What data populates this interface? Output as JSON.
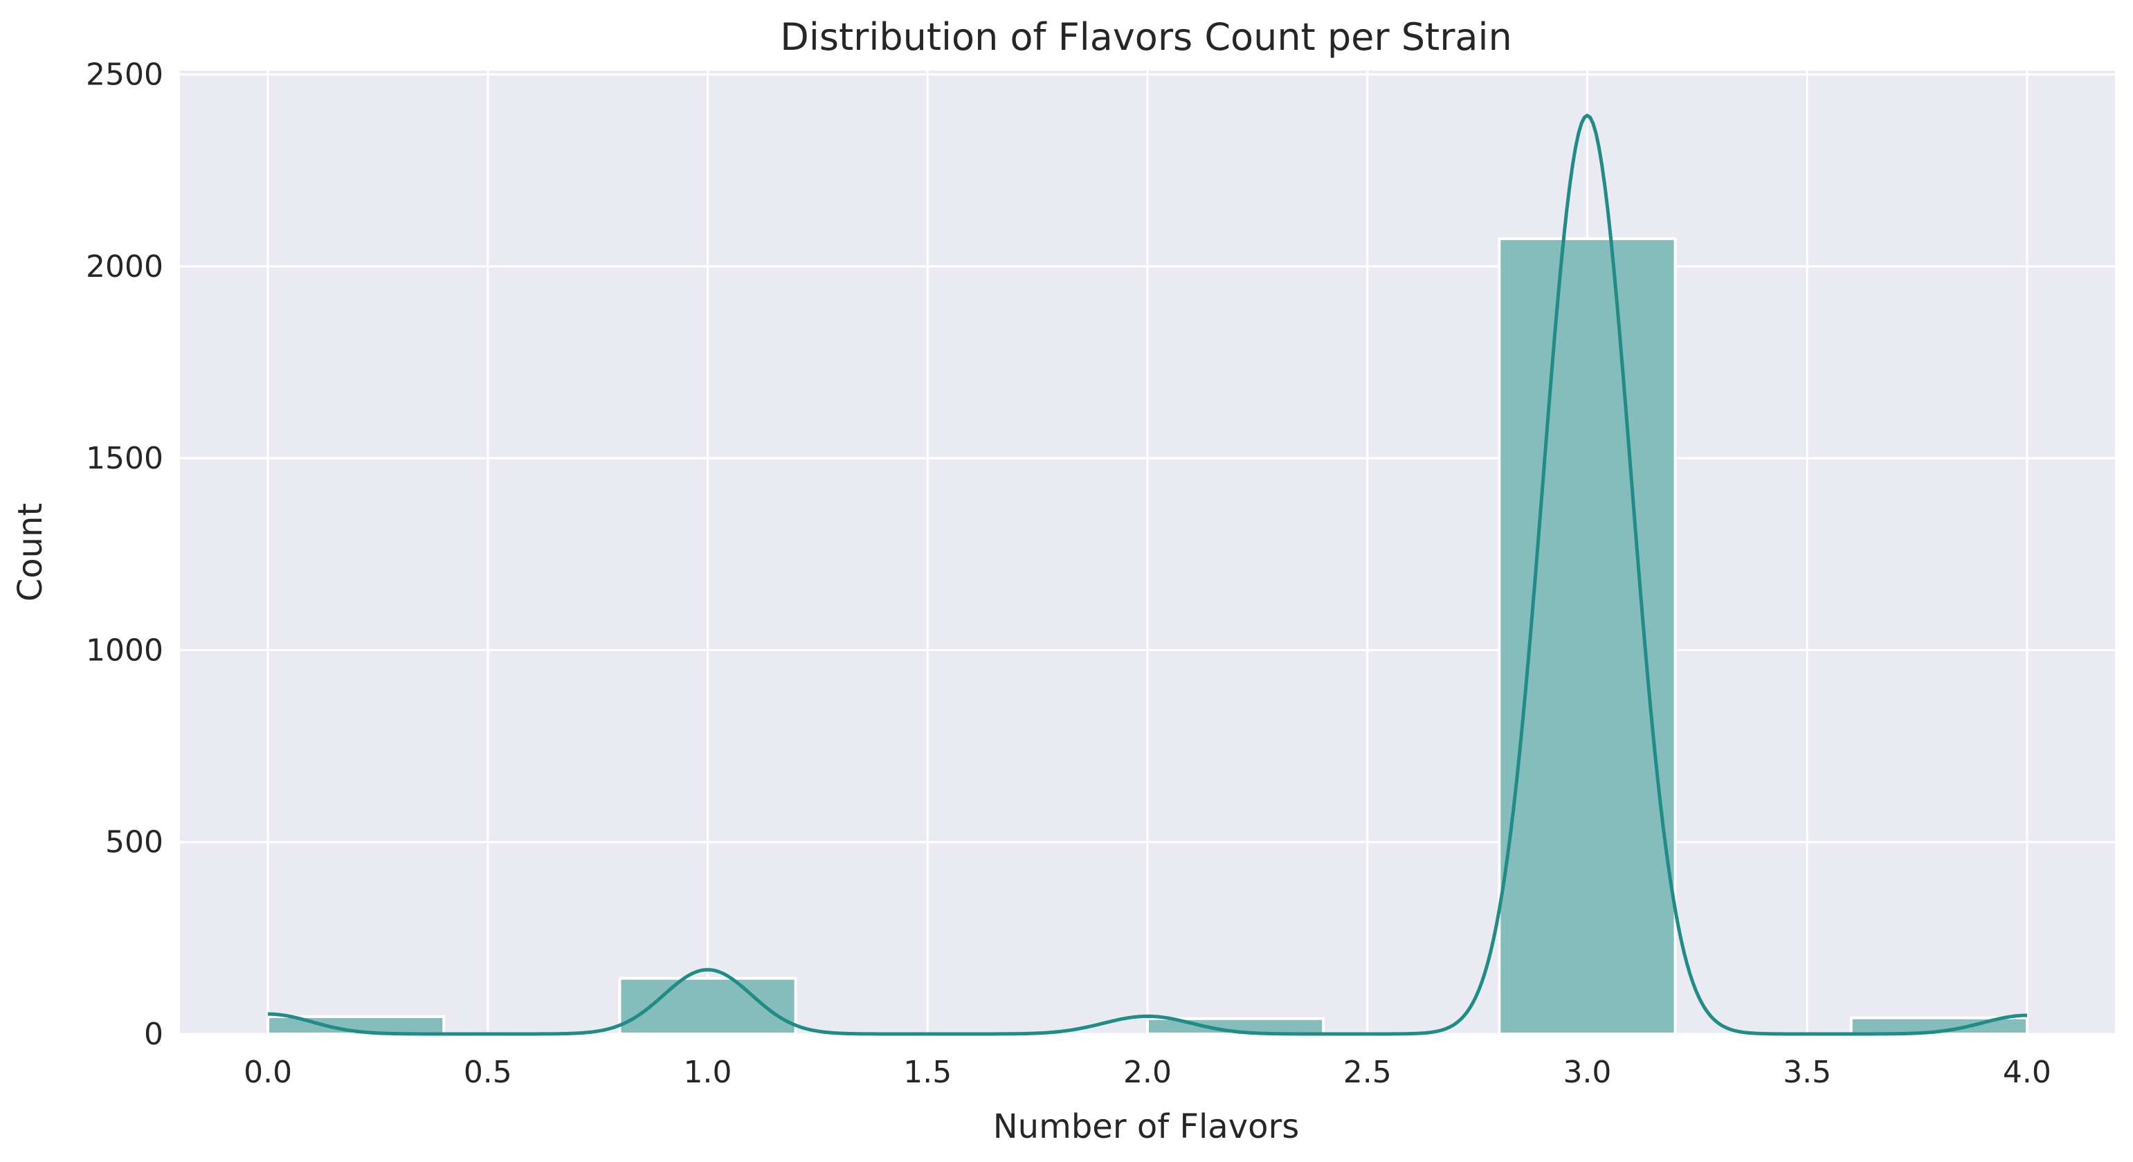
{
  "chart_data": {
    "type": "bar",
    "title": "Distribution of Flavors Count per Strain",
    "xlabel": "Number of Flavors",
    "ylabel": "Count",
    "xlim": [
      -0.2,
      4.2
    ],
    "ylim": [
      0,
      2510
    ],
    "x_ticks": [
      0.0,
      0.5,
      1.0,
      1.5,
      2.0,
      2.5,
      3.0,
      3.5,
      4.0
    ],
    "x_tick_labels": [
      "0.0",
      "0.5",
      "1.0",
      "1.5",
      "2.0",
      "2.5",
      "3.0",
      "3.5",
      "4.0"
    ],
    "y_ticks": [
      0,
      500,
      1000,
      1500,
      2000,
      2500
    ],
    "y_tick_labels": [
      "0",
      "500",
      "1000",
      "1500",
      "2000",
      "2500"
    ],
    "grid": true,
    "bins": [
      {
        "start": 0.0,
        "end": 0.4,
        "count": 45
      },
      {
        "start": 0.4,
        "end": 0.8,
        "count": 0
      },
      {
        "start": 0.8,
        "end": 1.2,
        "count": 145
      },
      {
        "start": 1.2,
        "end": 1.6,
        "count": 0
      },
      {
        "start": 1.6,
        "end": 2.0,
        "count": 0
      },
      {
        "start": 2.0,
        "end": 2.4,
        "count": 40
      },
      {
        "start": 2.4,
        "end": 2.8,
        "count": 0
      },
      {
        "start": 2.8,
        "end": 3.2,
        "count": 2072
      },
      {
        "start": 3.2,
        "end": 3.6,
        "count": 0
      },
      {
        "start": 3.6,
        "end": 4.0,
        "count": 42
      }
    ],
    "kde": {
      "bandwidth": 0.1,
      "points": [
        {
          "x": 0.0,
          "count": 45
        },
        {
          "x": 1.0,
          "count": 145
        },
        {
          "x": 2.0,
          "count": 40
        },
        {
          "x": 3.0,
          "count": 2072
        },
        {
          "x": 4.0,
          "count": 42
        }
      ]
    },
    "colors": {
      "bar_fill": "#84bdbc",
      "bar_edge": "#ffffff",
      "kde_line": "#1f8c85",
      "plot_background": "#eaeaf2",
      "grid": "#ffffff"
    }
  }
}
